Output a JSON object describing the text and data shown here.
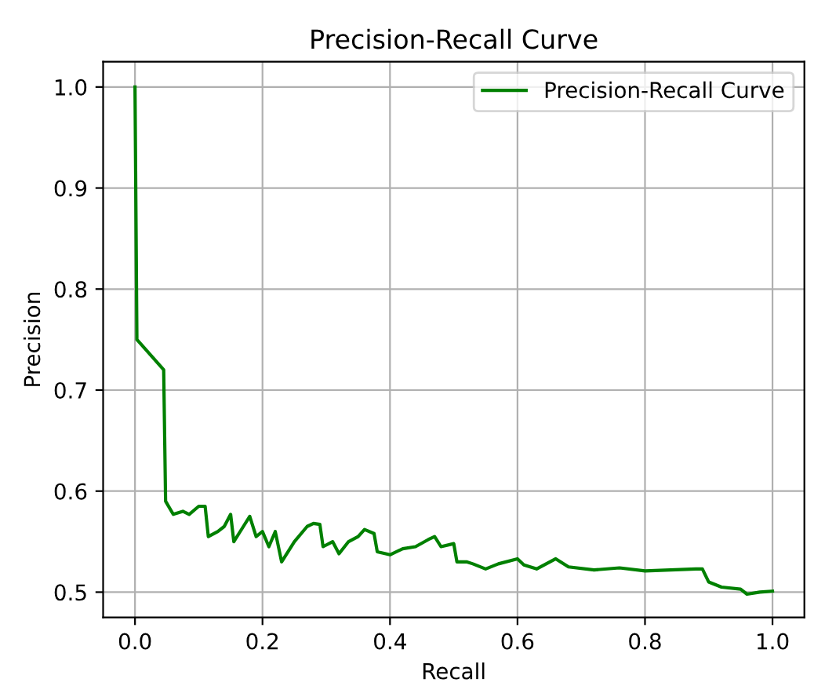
{
  "chart_data": {
    "type": "line",
    "title": "Precision-Recall Curve",
    "xlabel": "Recall",
    "ylabel": "Precision",
    "xlim": [
      -0.05,
      1.05
    ],
    "ylim": [
      0.475,
      1.025
    ],
    "xticks": [
      {
        "value": 0,
        "label": "0.0"
      },
      {
        "value": 0.2,
        "label": "0.2"
      },
      {
        "value": 0.4,
        "label": "0.4"
      },
      {
        "value": 0.6,
        "label": "0.6"
      },
      {
        "value": 0.8,
        "label": "0.8"
      },
      {
        "value": 1,
        "label": "1.0"
      }
    ],
    "yticks": [
      {
        "value": 0.5,
        "label": "0.5"
      },
      {
        "value": 0.6,
        "label": "0.6"
      },
      {
        "value": 0.7,
        "label": "0.7"
      },
      {
        "value": 0.8,
        "label": "0.8"
      },
      {
        "value": 0.9,
        "label": "0.9"
      },
      {
        "value": 1,
        "label": "1.0"
      }
    ],
    "grid": true,
    "legend": "top right",
    "line_style": "solid",
    "series": [
      {
        "name": "Precision-Recall Curve",
        "color": "#008000",
        "x": [
          0,
          0.003,
          0.045,
          0.048,
          0.06,
          0.075,
          0.085,
          0.1,
          0.11,
          0.115,
          0.13,
          0.14,
          0.15,
          0.155,
          0.17,
          0.18,
          0.19,
          0.2,
          0.21,
          0.22,
          0.23,
          0.25,
          0.27,
          0.28,
          0.29,
          0.295,
          0.31,
          0.32,
          0.335,
          0.35,
          0.36,
          0.375,
          0.38,
          0.4,
          0.42,
          0.44,
          0.46,
          0.47,
          0.48,
          0.5,
          0.505,
          0.52,
          0.53,
          0.55,
          0.57,
          0.6,
          0.61,
          0.63,
          0.66,
          0.68,
          0.72,
          0.76,
          0.8,
          0.84,
          0.88,
          0.89,
          0.9,
          0.92,
          0.95,
          0.96,
          0.98,
          1.0
        ],
        "values": [
          1.0,
          0.75,
          0.72,
          0.59,
          0.577,
          0.58,
          0.577,
          0.585,
          0.585,
          0.555,
          0.56,
          0.565,
          0.577,
          0.55,
          0.565,
          0.575,
          0.555,
          0.56,
          0.545,
          0.56,
          0.53,
          0.55,
          0.565,
          0.568,
          0.567,
          0.545,
          0.55,
          0.538,
          0.55,
          0.555,
          0.562,
          0.558,
          0.54,
          0.537,
          0.543,
          0.545,
          0.552,
          0.555,
          0.545,
          0.548,
          0.53,
          0.53,
          0.528,
          0.523,
          0.528,
          0.533,
          0.527,
          0.523,
          0.533,
          0.525,
          0.522,
          0.524,
          0.521,
          0.522,
          0.523,
          0.523,
          0.51,
          0.505,
          0.503,
          0.498,
          0.5,
          0.501
        ]
      }
    ]
  }
}
